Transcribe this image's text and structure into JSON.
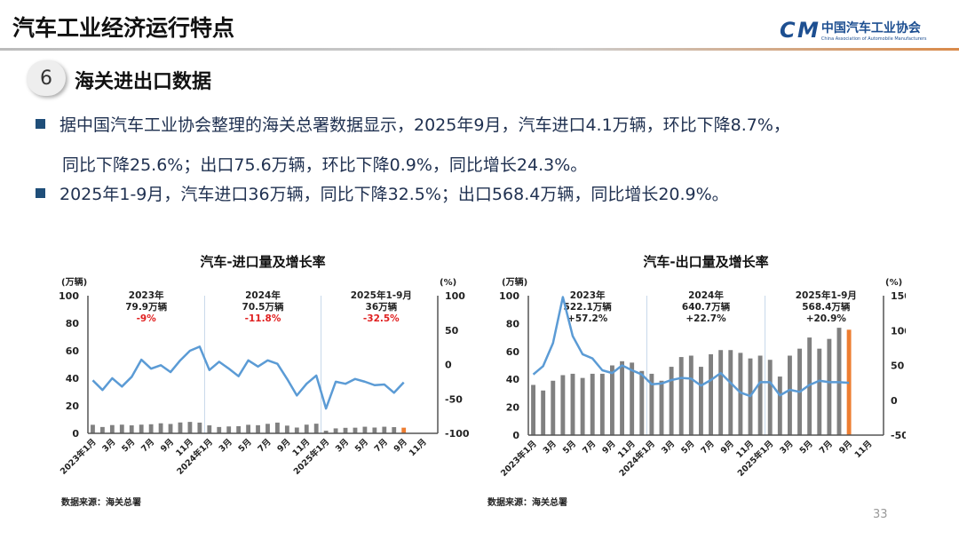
{
  "header": {
    "title": "汽车工业经济运行特点",
    "logo_cn": "中国汽车工业协会",
    "logo_en": "China Association of Automobile Manufacturers",
    "logo_mark": "CAM"
  },
  "section": {
    "number": "6",
    "title": "海关进出口数据"
  },
  "bullets": [
    {
      "line1": "据中国汽车工业协会整理的海关总署数据显示，2025年9月，汽车进口4.1万辆，环比下降8.7%，",
      "line2": "同比下降25.6%；出口75.6万辆，环比下降0.9%，同比增长24.3%。"
    },
    {
      "line1": "2025年1-9月，汽车进口36万辆，同比下降32.5%；出口568.4万辆，同比增长20.9%。"
    }
  ],
  "page_number": "33",
  "colors": {
    "bar": "#808080",
    "bar_highlight": "#ed7d31",
    "line": "#5b9bd5",
    "negative": "#e02020"
  },
  "chart_data": [
    {
      "type": "bar+line",
      "title": "汽车-进口量及增长率",
      "ylabel": "(万辆)",
      "y2label": "(%)",
      "ylim": [
        0,
        100
      ],
      "y2lim": [
        -100,
        100
      ],
      "yticks": [
        "0",
        "20",
        "40",
        "60",
        "80",
        "100"
      ],
      "y2ticks": [
        "-100",
        "-50",
        "0",
        "50",
        "100"
      ],
      "xticks": [
        "2023年1月",
        "3月",
        "5月",
        "7月",
        "9月",
        "11月",
        "2024年1月",
        "3月",
        "5月",
        "7月",
        "9月",
        "11月",
        "2025年1月",
        "3月",
        "5月",
        "7月",
        "9月",
        "11月"
      ],
      "source": "数据来源：海关总署",
      "annotations": [
        {
          "year": "2023年",
          "total": "79.9万辆",
          "growth": "-9%"
        },
        {
          "year": "2024年",
          "total": "70.5万辆",
          "growth": "-11.8%"
        },
        {
          "year": "2025年1-9月",
          "total": "36万辆",
          "growth": "-32.5%"
        }
      ],
      "bars": [
        6.2,
        4.6,
        6.0,
        6.3,
        5.8,
        6.3,
        6.6,
        7.3,
        6.8,
        7.9,
        8.3,
        7.8,
        5.8,
        4.6,
        5.0,
        5.2,
        6.2,
        5.9,
        6.9,
        7.8,
        5.6,
        4.2,
        6.3,
        7.0,
        1.9,
        3.6,
        4.0,
        4.1,
        4.8,
        4.2,
        4.8,
        4.5,
        4.1
      ],
      "growth": [
        -23,
        -37,
        -20,
        -32,
        -18,
        7,
        -6,
        -1,
        -11,
        6,
        20,
        26,
        -8,
        4,
        -6,
        -17,
        6,
        -3,
        6,
        1,
        -21,
        -45,
        -28,
        -16,
        -64,
        -25,
        -28,
        -21,
        -25,
        -30,
        -29,
        -41,
        -26
      ]
    },
    {
      "type": "bar+line",
      "title": "汽车-出口量及增长率",
      "ylabel": "(万辆)",
      "y2label": "(%)",
      "ylim": [
        0,
        100
      ],
      "y2lim": [
        -50,
        150
      ],
      "yticks": [
        "0",
        "20",
        "40",
        "60",
        "80",
        "100"
      ],
      "y2ticks": [
        "-50",
        "0",
        "50",
        "100",
        "150"
      ],
      "xticks": [
        "2023年1月",
        "3月",
        "5月",
        "7月",
        "9月",
        "11月",
        "2024年1月",
        "3月",
        "5月",
        "7月",
        "9月",
        "11月",
        "2025年1月",
        "3月",
        "5月",
        "7月",
        "9月",
        "11月"
      ],
      "source": "数据来源：海关总署",
      "annotations": [
        {
          "year": "2023年",
          "total": "522.1万辆",
          "growth": "+57.2%"
        },
        {
          "year": "2024年",
          "total": "640.7万辆",
          "growth": "+22.7%"
        },
        {
          "year": "2025年1-9月",
          "total": "568.4万辆",
          "growth": "+20.9%"
        }
      ],
      "bars": [
        36,
        32,
        39,
        43,
        44,
        41,
        44,
        44,
        50,
        53,
        52,
        46,
        44,
        39,
        49,
        56,
        57,
        49,
        58,
        61,
        61,
        59,
        55,
        57,
        54,
        42,
        57,
        62,
        70,
        62,
        69,
        77,
        75.6
      ],
      "growth": [
        37,
        49,
        82,
        148,
        92,
        66,
        60,
        43,
        39,
        50,
        43,
        37,
        23,
        24,
        29,
        32,
        31,
        21,
        29,
        39,
        25,
        11,
        6,
        26,
        26,
        7,
        15,
        12,
        22,
        28,
        26,
        26,
        25
      ]
    }
  ]
}
